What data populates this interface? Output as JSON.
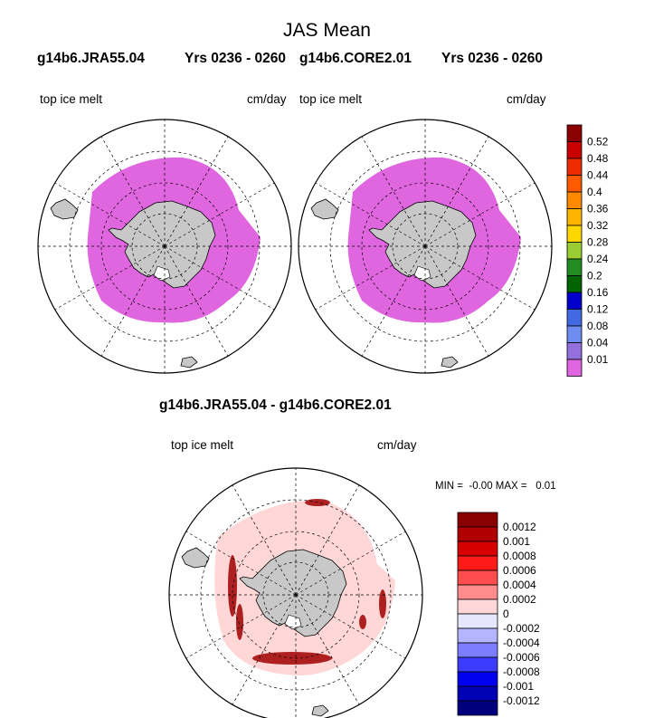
{
  "title": "JAS Mean",
  "panels": [
    {
      "id": "jra",
      "title_run": "g14b6.JRA55.04",
      "title_years": "Yrs 0236 - 0260",
      "left_label": "top ice melt",
      "right_label": "cm/day"
    },
    {
      "id": "core",
      "title_run": "g14b6.CORE2.01",
      "title_years": "Yrs 0236 - 0260",
      "left_label": "top ice melt",
      "right_label": "cm/day"
    },
    {
      "id": "diff",
      "title": "g14b6.JRA55.04 - g14b6.CORE2.01",
      "left_label": "top ice melt",
      "right_label": "cm/day",
      "stats": "MIN =  -0.00 MAX =   0.01"
    }
  ],
  "chart_data": [
    {
      "type": "heatmap",
      "projection": "south-polar-stereographic",
      "variable": "top ice melt",
      "units": "cm/day",
      "colorbar": {
        "levels": [
          "0.52",
          "0.48",
          "0.44",
          "0.4",
          "0.36",
          "0.32",
          "0.28",
          "0.24",
          "0.2",
          "0.16",
          "0.12",
          "0.08",
          "0.04",
          "0.01"
        ],
        "colors": [
          "#8b0000",
          "#c80000",
          "#ee2c00",
          "#ff5a00",
          "#ff8a00",
          "#ffb400",
          "#ffd700",
          "#9acd32",
          "#228b22",
          "#006400",
          "#0000cd",
          "#4169e1",
          "#6f8cf0",
          "#9370db",
          "#e066e0"
        ]
      }
    },
    {
      "type": "heatmap",
      "projection": "south-polar-stereographic",
      "variable": "top ice melt difference",
      "units": "cm/day",
      "min": -0.0,
      "max": 0.01,
      "colorbar": {
        "levels": [
          "0.0012",
          "0.001",
          "0.0008",
          "0.0006",
          "0.0004",
          "0.0002",
          "0",
          "-0.0002",
          "-0.0004",
          "-0.0006",
          "-0.0008",
          "-0.001",
          "-0.0012"
        ],
        "colors": [
          "#8b0000",
          "#b00000",
          "#d60000",
          "#ff1a1a",
          "#ff4d4d",
          "#ff8c8c",
          "#ffd7d7",
          "#e6e6ff",
          "#b4b4ff",
          "#7d7dff",
          "#3c3cff",
          "#0000ee",
          "#0000b4",
          "#00007d"
        ]
      }
    }
  ]
}
